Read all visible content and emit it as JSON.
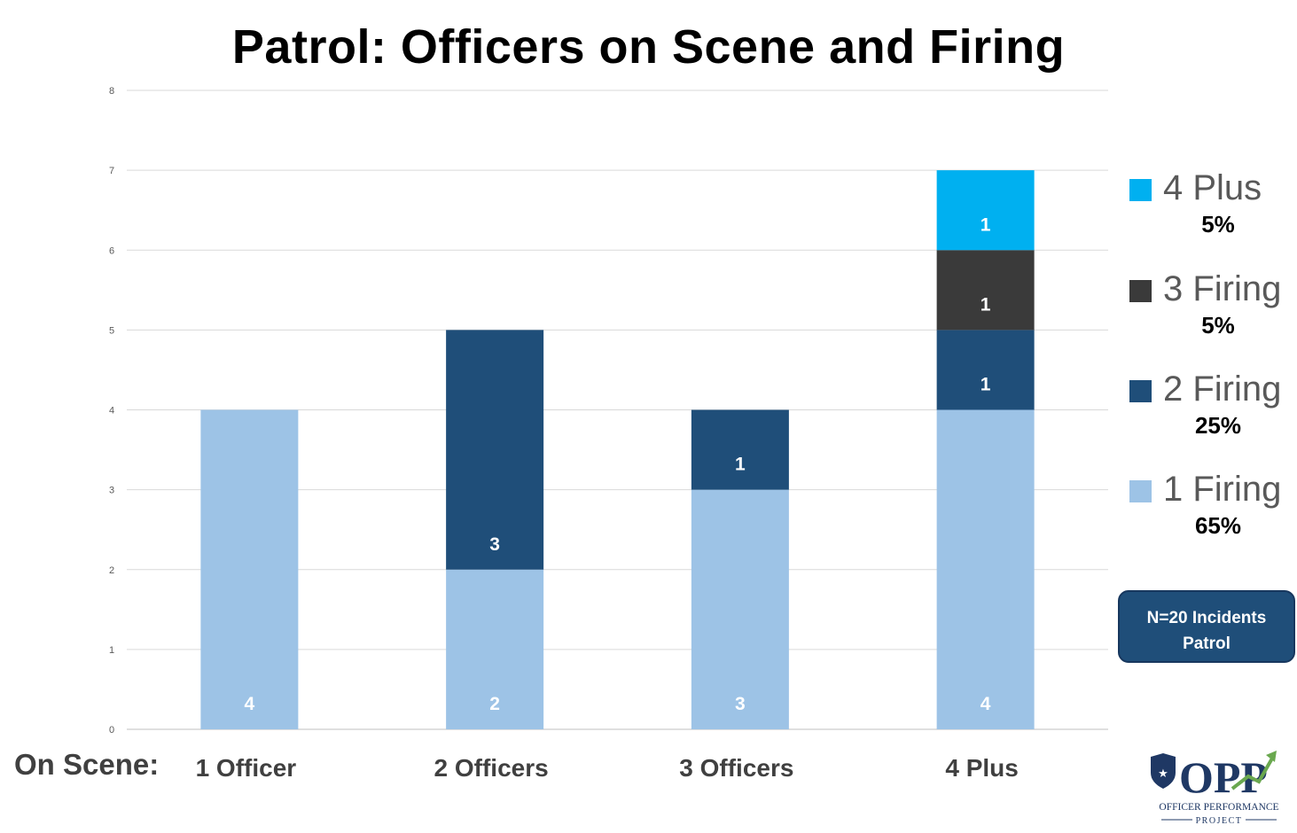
{
  "chart_data": {
    "type": "bar",
    "stacked": true,
    "title": "Patrol: Officers on Scene and Firing",
    "xlabel": "On Scene:",
    "ylabel": "",
    "ylim": [
      0,
      8
    ],
    "yticks": [
      0,
      1,
      2,
      3,
      4,
      5,
      6,
      7,
      8
    ],
    "grid": true,
    "legend_position": "right",
    "categories": [
      "1 Officer",
      "2 Officers",
      "3 Officers",
      "4 Plus"
    ],
    "series": [
      {
        "name": "1 Firing",
        "values": [
          4,
          2,
          3,
          4
        ],
        "color": "#9dc3e6",
        "share": "65%"
      },
      {
        "name": "2 Firing",
        "values": [
          0,
          3,
          1,
          1
        ],
        "color": "#1f4e79",
        "share": "25%"
      },
      {
        "name": "3 Firing",
        "values": [
          0,
          0,
          0,
          1
        ],
        "color": "#3a3a3a",
        "share": "5%"
      },
      {
        "name": "4 Plus",
        "values": [
          0,
          0,
          0,
          1
        ],
        "color": "#00b0f0",
        "share": "5%"
      }
    ]
  },
  "note": {
    "line1": "N=20 Incidents",
    "line2": "Patrol"
  },
  "logo": {
    "text": "OPP",
    "subtitle1": "OFFICER PERFORMANCE",
    "subtitle2": "PROJECT"
  }
}
